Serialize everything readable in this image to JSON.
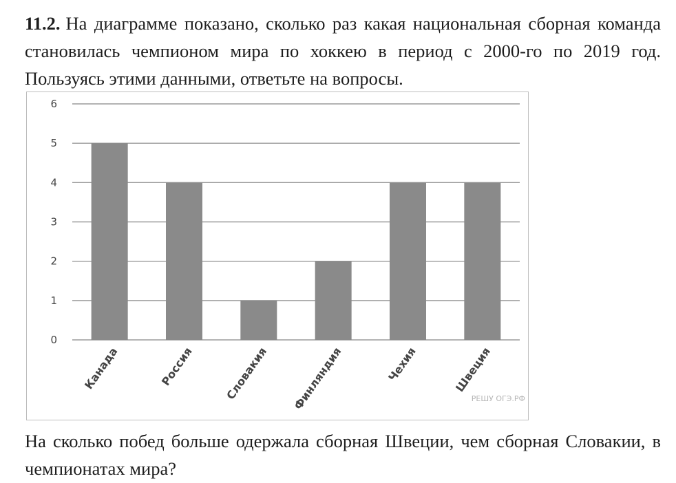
{
  "problem": {
    "number": "11.2.",
    "text": "На диаграмме показано, сколько раз какая национальная сборная команда становилась чемпионом мира по хоккею в период с 2000-го по 2019 год. Пользуясь этими данными, ответьте на вопросы."
  },
  "question": {
    "text": "На сколько побед больше одержала сборная Швеции, чем сборная Словакии, в чемпионатах мира?"
  },
  "chart_data": {
    "type": "bar",
    "categories": [
      "Канада",
      "Россия",
      "Словакия",
      "Финляндия",
      "Чехия",
      "Швеция"
    ],
    "values": [
      5,
      4,
      1,
      2,
      4,
      4
    ],
    "ylim": [
      0,
      6
    ],
    "yticks": [
      "0",
      "1",
      "2",
      "3",
      "4",
      "5",
      "6"
    ],
    "title": "",
    "xlabel": "",
    "ylabel": "",
    "grid": true,
    "bar_color": "#8a8a8a",
    "grid_color": "#9a9a9a",
    "watermark": "РЕШУ ОГЭ.РФ"
  }
}
